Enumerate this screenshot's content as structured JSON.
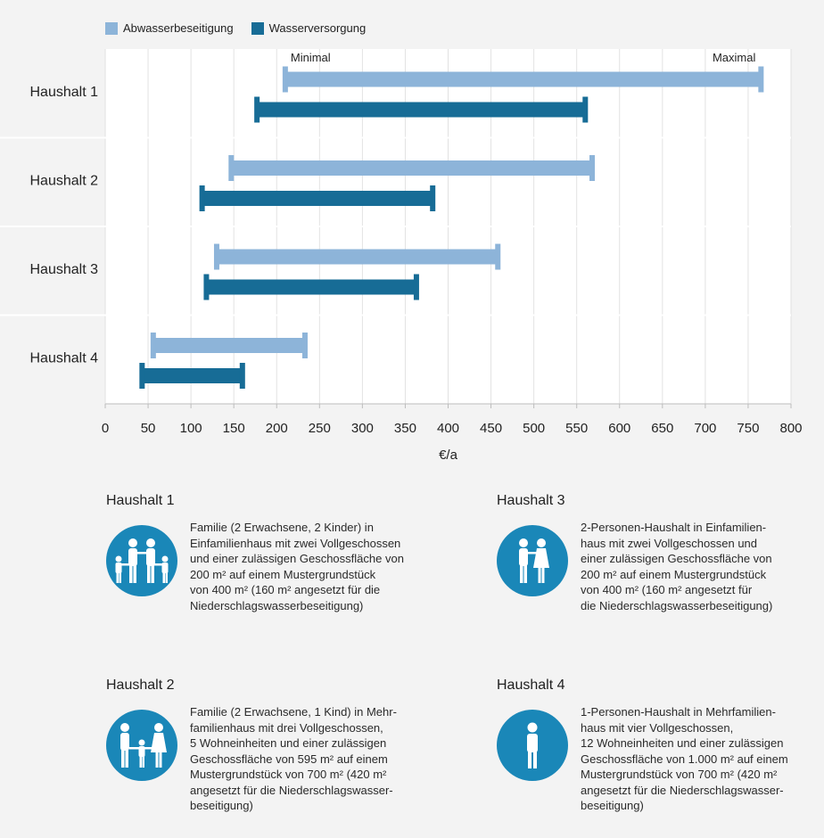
{
  "chart_data": {
    "type": "range-bar",
    "categories": [
      "Haushalt 1",
      "Haushalt 2",
      "Haushalt 3",
      "Haushalt 4"
    ],
    "series": [
      {
        "name": "Abwasserbeseitigung",
        "color": "#8db4d9",
        "ranges": [
          [
            210,
            765
          ],
          [
            147,
            568
          ],
          [
            130,
            458
          ],
          [
            56,
            233
          ]
        ]
      },
      {
        "name": "Wasserversorgung",
        "color": "#176c96",
        "ranges": [
          [
            177,
            560
          ],
          [
            113,
            382
          ],
          [
            118,
            363
          ],
          [
            43,
            160
          ]
        ]
      }
    ],
    "xlabel": "€/a",
    "xlim": [
      0,
      800
    ],
    "xticks": [
      0,
      50,
      100,
      150,
      200,
      250,
      300,
      350,
      400,
      450,
      500,
      550,
      600,
      650,
      700,
      750,
      800
    ],
    "grid": true,
    "legend_position": "top-left",
    "annotations": [
      "Minimal",
      "Maximal"
    ]
  },
  "households": [
    {
      "title": "Haushalt 1",
      "icon": "family-two-adults-two-children-icon",
      "lines": [
        "Familie (2 Erwachsene, 2 Kinder) in",
        "Einfamilienhaus mit zwei Vollgeschossen",
        "und einer zulässigen Geschossfläche von",
        "200 m² auf einem Mustergrundstück",
        "von 400 m² (160 m² angesetzt für die",
        "Niederschlagswasserbeseitigung)"
      ]
    },
    {
      "title": "Haushalt 3",
      "icon": "couple-icon",
      "lines": [
        "2-Personen-Haushalt in Einfamilien-",
        "haus mit zwei Vollgeschossen und",
        "einer zulässigen Geschossfläche von",
        "200 m² auf einem Mustergrundstück",
        "von 400 m² (160 m² angesetzt für",
        "die Niederschlagswasserbeseitigung)"
      ]
    },
    {
      "title": "Haushalt 2",
      "icon": "family-two-adults-one-child-icon",
      "lines": [
        "Familie (2 Erwachsene, 1 Kind) in Mehr-",
        "familienhaus mit drei Vollgeschossen,",
        "5 Wohneinheiten und einer zulässigen",
        "Geschossfläche von 595 m² auf einem",
        "Mustergrundstück von 700 m² (420 m²",
        "angesetzt für die Niederschlagswasser-",
        "beseitigung)"
      ]
    },
    {
      "title": "Haushalt 4",
      "icon": "single-person-icon",
      "lines": [
        "1-Personen-Haushalt in Mehrfamilien-",
        "haus mit vier Vollgeschossen,",
        "12 Wohneinheiten und einer zulässigen",
        "Geschossfläche von 1.000 m² auf einem",
        "Mustergrundstück von 700 m² (420 m²",
        "angesetzt für die Niederschlagswasser-",
        "beseitigung)"
      ]
    }
  ]
}
